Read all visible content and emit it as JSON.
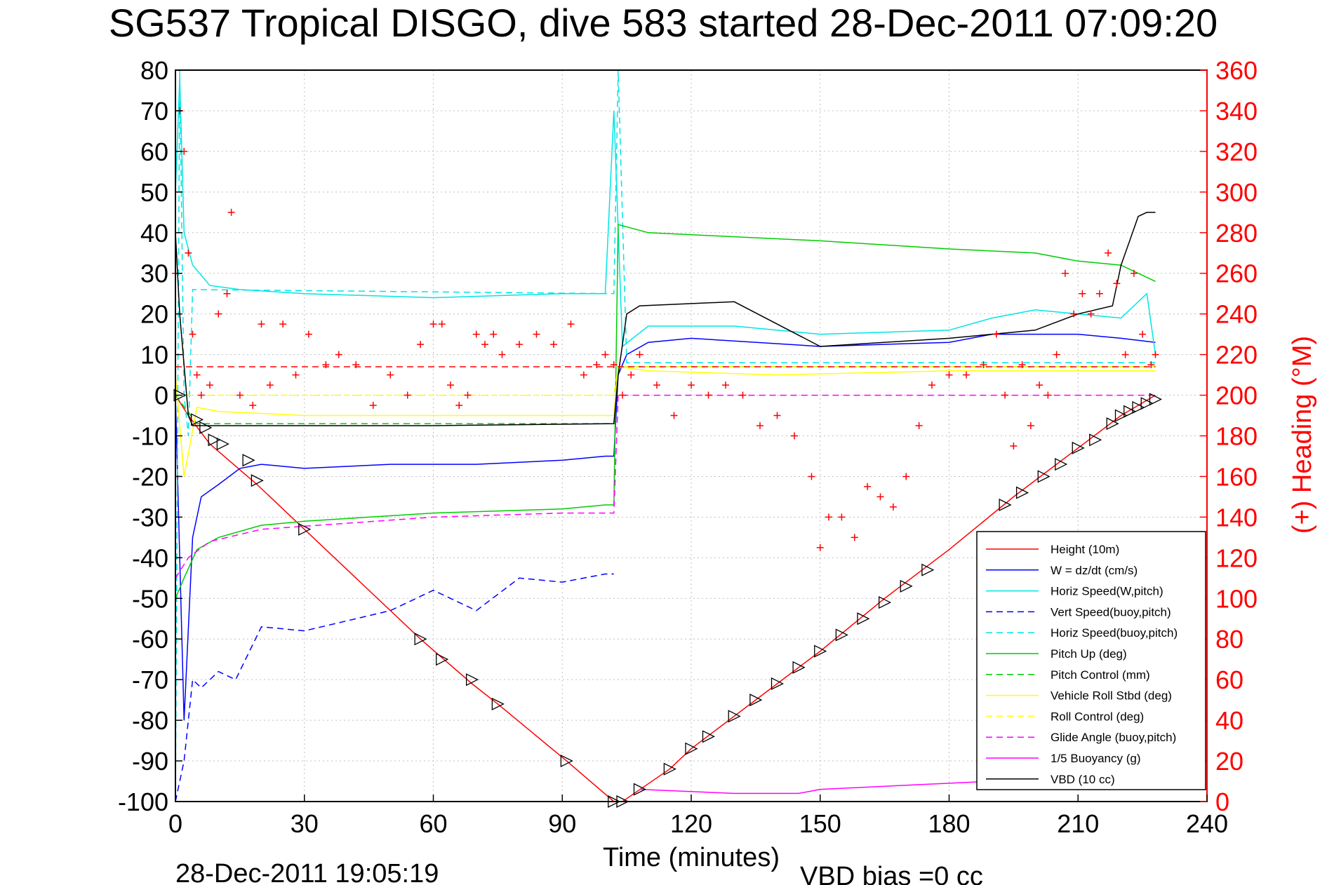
{
  "chart_data": {
    "type": "line",
    "title": "SG537 Tropical DISGO, dive 583 started 28-Dec-2011 07:09:20",
    "xlabel": "Time (minutes)",
    "ylabel": "",
    "ylabel_right": "(+) Heading (°M)",
    "footer_left": "28-Dec-2011 19:05:19",
    "footer_right": "VBD bias =0 cc",
    "xlim": [
      0,
      240
    ],
    "ylim": [
      -100,
      80
    ],
    "ylim_right": [
      0,
      360
    ],
    "x_ticks": [
      "0",
      "30",
      "60",
      "90",
      "120",
      "150",
      "180",
      "210",
      "240"
    ],
    "y_ticks": [
      "80",
      "70",
      "60",
      "50",
      "40",
      "30",
      "20",
      "10",
      "0",
      "-10",
      "-20",
      "-30",
      "-40",
      "-50",
      "-60",
      "-70",
      "-80",
      "-90",
      "-100"
    ],
    "y_ticks_right": [
      "360",
      "340",
      "320",
      "300",
      "280",
      "260",
      "240",
      "220",
      "200",
      "180",
      "160",
      "140",
      "120",
      "100",
      "80",
      "60",
      "40",
      "20",
      "0"
    ],
    "grid": true,
    "legend_position": "bottom-right",
    "series": [
      {
        "name": "Height (10m)",
        "color": "#ff0000",
        "style": "solid",
        "x": [
          0,
          3,
          8,
          19,
          30,
          57,
          69,
          75,
          91,
          102,
          104,
          115,
          120,
          135,
          150,
          165,
          180,
          195,
          210,
          220,
          228
        ],
        "y": [
          0,
          -5,
          -12,
          -22,
          -33,
          -60,
          -71,
          -76,
          -90,
          -100,
          -100,
          -92,
          -87,
          -75,
          -63,
          -50,
          -38,
          -25,
          -13,
          -5,
          0
        ]
      },
      {
        "name": "W = dz/dt (cm/s)",
        "color": "#0000ff",
        "style": "solid",
        "x": [
          0,
          1,
          2,
          4,
          6,
          10,
          15,
          20,
          30,
          50,
          70,
          90,
          100,
          102,
          103,
          105,
          110,
          120,
          150,
          180,
          190,
          200,
          210,
          220,
          228
        ],
        "y": [
          0,
          -40,
          -80,
          -35,
          -25,
          -22,
          -18,
          -17,
          -18,
          -17,
          -17,
          -16,
          -15,
          -15,
          5,
          10,
          13,
          14,
          12,
          13,
          15,
          15,
          15,
          14,
          13
        ]
      },
      {
        "name": "Horiz Speed(W,pitch)",
        "color": "#00e5e5",
        "style": "solid",
        "x": [
          0,
          1,
          2,
          4,
          8,
          15,
          30,
          60,
          90,
          100,
          102,
          104,
          110,
          130,
          150,
          180,
          190,
          200,
          210,
          220,
          226,
          228
        ],
        "y": [
          50,
          78,
          40,
          32,
          27,
          26,
          25,
          24,
          25,
          25,
          70,
          12,
          17,
          17,
          15,
          16,
          19,
          21,
          20,
          19,
          25,
          10
        ]
      },
      {
        "name": "Vert Speed(buoy,pitch)",
        "color": "#0000ff",
        "style": "dashed",
        "x": [
          0,
          2,
          4,
          6,
          10,
          14,
          20,
          30,
          50,
          60,
          70,
          80,
          90,
          100,
          102
        ],
        "y": [
          -100,
          -90,
          -70,
          -72,
          -68,
          -70,
          -57,
          -58,
          -53,
          -48,
          -53,
          -45,
          -46,
          -44,
          -44
        ]
      },
      {
        "name": "Horiz Speed(buoy,pitch)",
        "color": "#00e5e5",
        "style": "dashed",
        "x": [
          0,
          1,
          2,
          3,
          4,
          102,
          103,
          105,
          228
        ],
        "y": [
          -100,
          80,
          0,
          -10,
          26,
          25,
          80,
          8,
          8
        ]
      },
      {
        "name": "Pitch Up (deg)",
        "color": "#00cc00",
        "style": "solid",
        "x": [
          0,
          2,
          5,
          10,
          20,
          30,
          60,
          90,
          100,
          102,
          103,
          110,
          130,
          150,
          180,
          200,
          210,
          220,
          228
        ],
        "y": [
          -50,
          -45,
          -38,
          -35,
          -32,
          -31,
          -29,
          -28,
          -27,
          -27,
          42,
          40,
          39,
          38,
          36,
          35,
          33,
          32,
          28
        ]
      },
      {
        "name": "Pitch Control (mm)",
        "color": "#00cc00",
        "style": "dashed",
        "x": [
          0,
          5,
          102,
          103,
          228
        ],
        "y": [
          0,
          -7,
          -7,
          7,
          7
        ]
      },
      {
        "name": "Vehicle Roll Stbd (deg)",
        "color": "#ffff00",
        "style": "solid",
        "x": [
          0,
          2,
          5,
          10,
          30,
          60,
          90,
          102,
          103,
          110,
          140,
          180,
          228
        ],
        "y": [
          5,
          -20,
          -3,
          -4,
          -5,
          -5,
          -5,
          -5,
          7,
          6,
          5,
          6,
          6
        ]
      },
      {
        "name": "Roll Control (deg)",
        "color": "#ffff00",
        "style": "dashed",
        "x": [
          0,
          5,
          102,
          103,
          228
        ],
        "y": [
          0,
          0,
          0,
          7,
          7
        ]
      },
      {
        "name": "Glide Angle (buoy,pitch)",
        "color": "#ff00ff",
        "style": "dashed",
        "x": [
          0,
          3,
          8,
          20,
          60,
          90,
          102,
          103,
          228
        ],
        "y": [
          -45,
          -40,
          -36,
          -33,
          -30,
          -29,
          -29,
          0,
          0
        ]
      },
      {
        "name": "1/5 Buoyancy (g)",
        "color": "#ff00ff",
        "style": "solid",
        "x": [
          108,
          130,
          145,
          150,
          170,
          190,
          210,
          228
        ],
        "y": [
          -97,
          -98,
          -98,
          -97,
          -96,
          -95,
          -94,
          -93
        ]
      },
      {
        "name": "VBD (10 cc)",
        "color": "#000000",
        "style": "solid",
        "x": [
          0,
          1,
          3,
          4,
          60,
          102,
          103,
          105,
          108,
          130,
          150,
          180,
          190,
          200,
          210,
          218,
          220,
          222,
          224,
          226,
          228
        ],
        "y": [
          40,
          20,
          -5,
          -7.5,
          -7.5,
          -7,
          5,
          20,
          22,
          23,
          12,
          14,
          15,
          16,
          20,
          22,
          32,
          38,
          44,
          45,
          45
        ]
      },
      {
        "name": "(+) Heading",
        "color": "#ff0000",
        "axis": "right",
        "marker": "+",
        "x": [
          0,
          1,
          2,
          3,
          4,
          5,
          6,
          8,
          10,
          12,
          13,
          15,
          18,
          20,
          22,
          25,
          28,
          31,
          35,
          38,
          42,
          46,
          50,
          54,
          57,
          60,
          62,
          64,
          66,
          68,
          70,
          72,
          74,
          76,
          80,
          84,
          88,
          92,
          95,
          98,
          100,
          102,
          104,
          106,
          108,
          112,
          116,
          120,
          124,
          128,
          132,
          136,
          140,
          144,
          148,
          150,
          152,
          155,
          158,
          161,
          164,
          167,
          170,
          173,
          176,
          180,
          184,
          188,
          191,
          193,
          195,
          197,
          199,
          201,
          203,
          205,
          207,
          209,
          211,
          213,
          215,
          217,
          219,
          221,
          223,
          225,
          227,
          228
        ],
        "y": [
          260,
          340,
          320,
          270,
          230,
          210,
          200,
          205,
          240,
          250,
          290,
          200,
          195,
          235,
          205,
          235,
          210,
          230,
          215,
          220,
          215,
          195,
          210,
          200,
          225,
          235,
          235,
          205,
          195,
          200,
          230,
          225,
          230,
          220,
          225,
          230,
          225,
          235,
          210,
          215,
          220,
          215,
          200,
          210,
          220,
          205,
          190,
          205,
          200,
          205,
          200,
          185,
          190,
          180,
          160,
          125,
          140,
          140,
          130,
          155,
          150,
          145,
          160,
          185,
          205,
          210,
          210,
          215,
          230,
          200,
          175,
          215,
          185,
          205,
          200,
          220,
          260,
          240,
          250,
          240,
          250,
          270,
          255,
          220,
          260,
          230,
          215,
          220
        ]
      },
      {
        "name": "Heading ref",
        "color": "#ff0000",
        "axis": "right",
        "style": "dashed",
        "x": [
          0,
          228
        ],
        "y": [
          214,
          214
        ]
      }
    ],
    "markers": [
      {
        "name": "Height markers (triangles)",
        "color": "#000000",
        "x": [
          1,
          5,
          7,
          9,
          11,
          17,
          19,
          30,
          57,
          62,
          69,
          75,
          91,
          102,
          104,
          108,
          115,
          120,
          124,
          130,
          135,
          140,
          145,
          150,
          155,
          160,
          165,
          170,
          175,
          193,
          197,
          202,
          206,
          210,
          214,
          218,
          220,
          222,
          224,
          226,
          228
        ],
        "y": [
          0,
          -6,
          -8,
          -11,
          -12,
          -16,
          -21,
          -33,
          -60,
          -65,
          -70,
          -76,
          -90,
          -100,
          -100,
          -97,
          -92,
          -87,
          -84,
          -79,
          -75,
          -71,
          -67,
          -63,
          -59,
          -55,
          -51,
          -47,
          -43,
          -27,
          -24,
          -20,
          -17,
          -13,
          -11,
          -7,
          -5,
          -4,
          -3,
          -2,
          -1
        ]
      }
    ]
  }
}
